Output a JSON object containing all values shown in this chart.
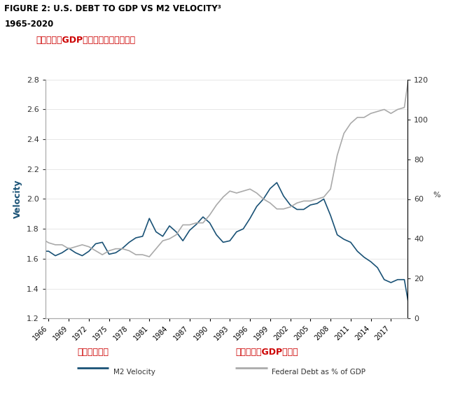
{
  "title_line1": "FIGURE 2: U.S. DEBT TO GDP VS M2 VELOCITY³",
  "title_line2": "1965-2020",
  "title_chinese": "美国债务占GDP的比率与货币流通速度",
  "ylabel_left": "Velocity",
  "ylabel_right": "%",
  "legend_chinese_1": "货币流通速度",
  "legend_chinese_2": "美国债务占GDP的比率",
  "legend_label_1": "M2 Velocity",
  "legend_label_2": "Federal Debt as % of GDP",
  "m2_color": "#1a5276",
  "debt_color": "#aaaaaa",
  "title_color_figure": "#000000",
  "title_color_chinese": "#cc0000",
  "legend_chinese_color": "#cc0000",
  "background_color": "#ffffff",
  "ylim_left": [
    1.2,
    2.8
  ],
  "ylim_right": [
    0,
    120
  ],
  "yticks_left": [
    1.2,
    1.4,
    1.6,
    1.8,
    2.0,
    2.2,
    2.4,
    2.6,
    2.8
  ],
  "yticks_right": [
    0,
    20,
    40,
    60,
    80,
    100,
    120
  ],
  "xtick_years": [
    1966,
    1969,
    1972,
    1975,
    1978,
    1981,
    1984,
    1987,
    1990,
    1993,
    1996,
    1999,
    2002,
    2005,
    2008,
    2011,
    2014,
    2017
  ],
  "m2_velocity": {
    "years": [
      1965,
      1966,
      1967,
      1968,
      1969,
      1970,
      1971,
      1972,
      1973,
      1974,
      1975,
      1976,
      1977,
      1978,
      1979,
      1980,
      1981,
      1982,
      1983,
      1984,
      1985,
      1986,
      1987,
      1988,
      1989,
      1990,
      1991,
      1992,
      1993,
      1994,
      1995,
      1996,
      1997,
      1998,
      1999,
      2000,
      2001,
      2002,
      2003,
      2004,
      2005,
      2006,
      2007,
      2008,
      2009,
      2010,
      2011,
      2012,
      2013,
      2014,
      2015,
      2016,
      2017,
      2018,
      2019,
      2020
    ],
    "values": [
      1.65,
      1.65,
      1.62,
      1.64,
      1.67,
      1.64,
      1.62,
      1.65,
      1.7,
      1.71,
      1.63,
      1.64,
      1.67,
      1.71,
      1.74,
      1.75,
      1.87,
      1.78,
      1.75,
      1.82,
      1.78,
      1.72,
      1.79,
      1.83,
      1.88,
      1.84,
      1.76,
      1.71,
      1.72,
      1.78,
      1.8,
      1.87,
      1.95,
      2.0,
      2.07,
      2.11,
      2.02,
      1.96,
      1.93,
      1.93,
      1.96,
      1.97,
      2.0,
      1.89,
      1.76,
      1.73,
      1.71,
      1.65,
      1.61,
      1.58,
      1.54,
      1.46,
      1.44,
      1.46,
      1.46,
      1.2
    ]
  },
  "federal_debt": {
    "years": [
      1965,
      1966,
      1967,
      1968,
      1969,
      1970,
      1971,
      1972,
      1973,
      1974,
      1975,
      1976,
      1977,
      1978,
      1979,
      1980,
      1981,
      1982,
      1983,
      1984,
      1985,
      1986,
      1987,
      1988,
      1989,
      1990,
      1991,
      1992,
      1993,
      1994,
      1995,
      1996,
      1997,
      1998,
      1999,
      2000,
      2001,
      2002,
      2003,
      2004,
      2005,
      2006,
      2007,
      2008,
      2009,
      2010,
      2011,
      2012,
      2013,
      2014,
      2015,
      2016,
      2017,
      2018,
      2019,
      2020
    ],
    "values": [
      40,
      38,
      37,
      37,
      35,
      36,
      37,
      36,
      34,
      32,
      34,
      35,
      35,
      34,
      32,
      32,
      31,
      35,
      39,
      40,
      42,
      47,
      47,
      48,
      48,
      52,
      57,
      61,
      64,
      63,
      64,
      65,
      63,
      60,
      58,
      55,
      55,
      56,
      58,
      59,
      59,
      60,
      61,
      65,
      82,
      93,
      98,
      101,
      101,
      103,
      104,
      105,
      103,
      105,
      106,
      130
    ]
  }
}
